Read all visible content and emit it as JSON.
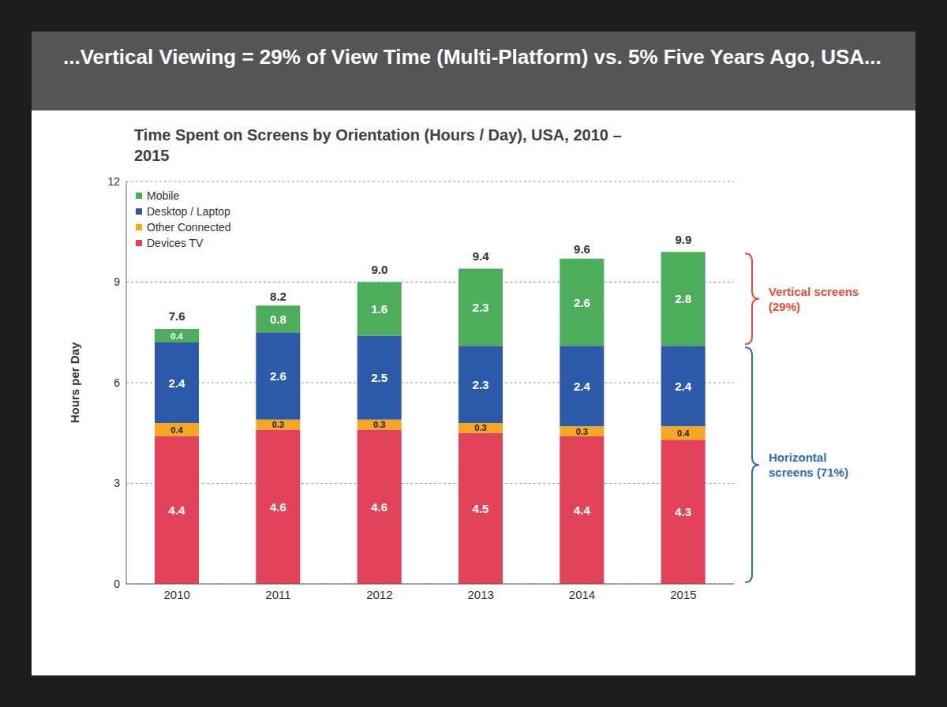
{
  "chart_data": {
    "type": "bar",
    "title": "...Vertical Viewing = 29% of View Time (Multi-Platform) vs. 5% Five Years Ago, USA...",
    "subtitle": "Time Spent on Screens by Orientation (Hours / Day), USA, 2010 – 2015",
    "y_label": "Hours per Day",
    "categories": [
      "2010",
      "2011",
      "2012",
      "2013",
      "2014",
      "2015"
    ],
    "series": [
      {
        "name": "Devices TV",
        "color": "#e2435a",
        "values": [
          4.4,
          4.6,
          4.6,
          4.5,
          4.4,
          4.3
        ]
      },
      {
        "name": "Other Connected",
        "color": "#f5a623",
        "values": [
          0.4,
          0.3,
          0.3,
          0.3,
          0.3,
          0.4
        ]
      },
      {
        "name": "Desktop / Laptop",
        "color": "#2c5aa8",
        "values": [
          2.4,
          2.6,
          2.5,
          2.3,
          2.4,
          2.4
        ]
      },
      {
        "name": "Mobile",
        "color": "#4cae5a",
        "values": [
          0.4,
          0.8,
          1.6,
          2.3,
          2.6,
          2.8
        ]
      }
    ],
    "totals": [
      7.6,
      8.2,
      9.0,
      9.4,
      9.6,
      9.9
    ],
    "total_labels": [
      "7.6",
      "8.2",
      "9.0",
      "9.4",
      "9.6",
      "9.9"
    ],
    "annotations": [
      {
        "text": "Vertical screens (29%)",
        "color": "#e0503c",
        "series": [
          "Mobile"
        ]
      },
      {
        "text": "Horizontal screens (71%)",
        "color": "#2f6db5",
        "series": [
          "Devices TV",
          "Other Connected",
          "Desktop / Laptop"
        ]
      }
    ],
    "ylim": [
      0,
      12
    ],
    "yticks": [
      0,
      3,
      6,
      9,
      12
    ],
    "stacked": true,
    "data_labels": true,
    "grid": true,
    "legend": "upper left"
  }
}
